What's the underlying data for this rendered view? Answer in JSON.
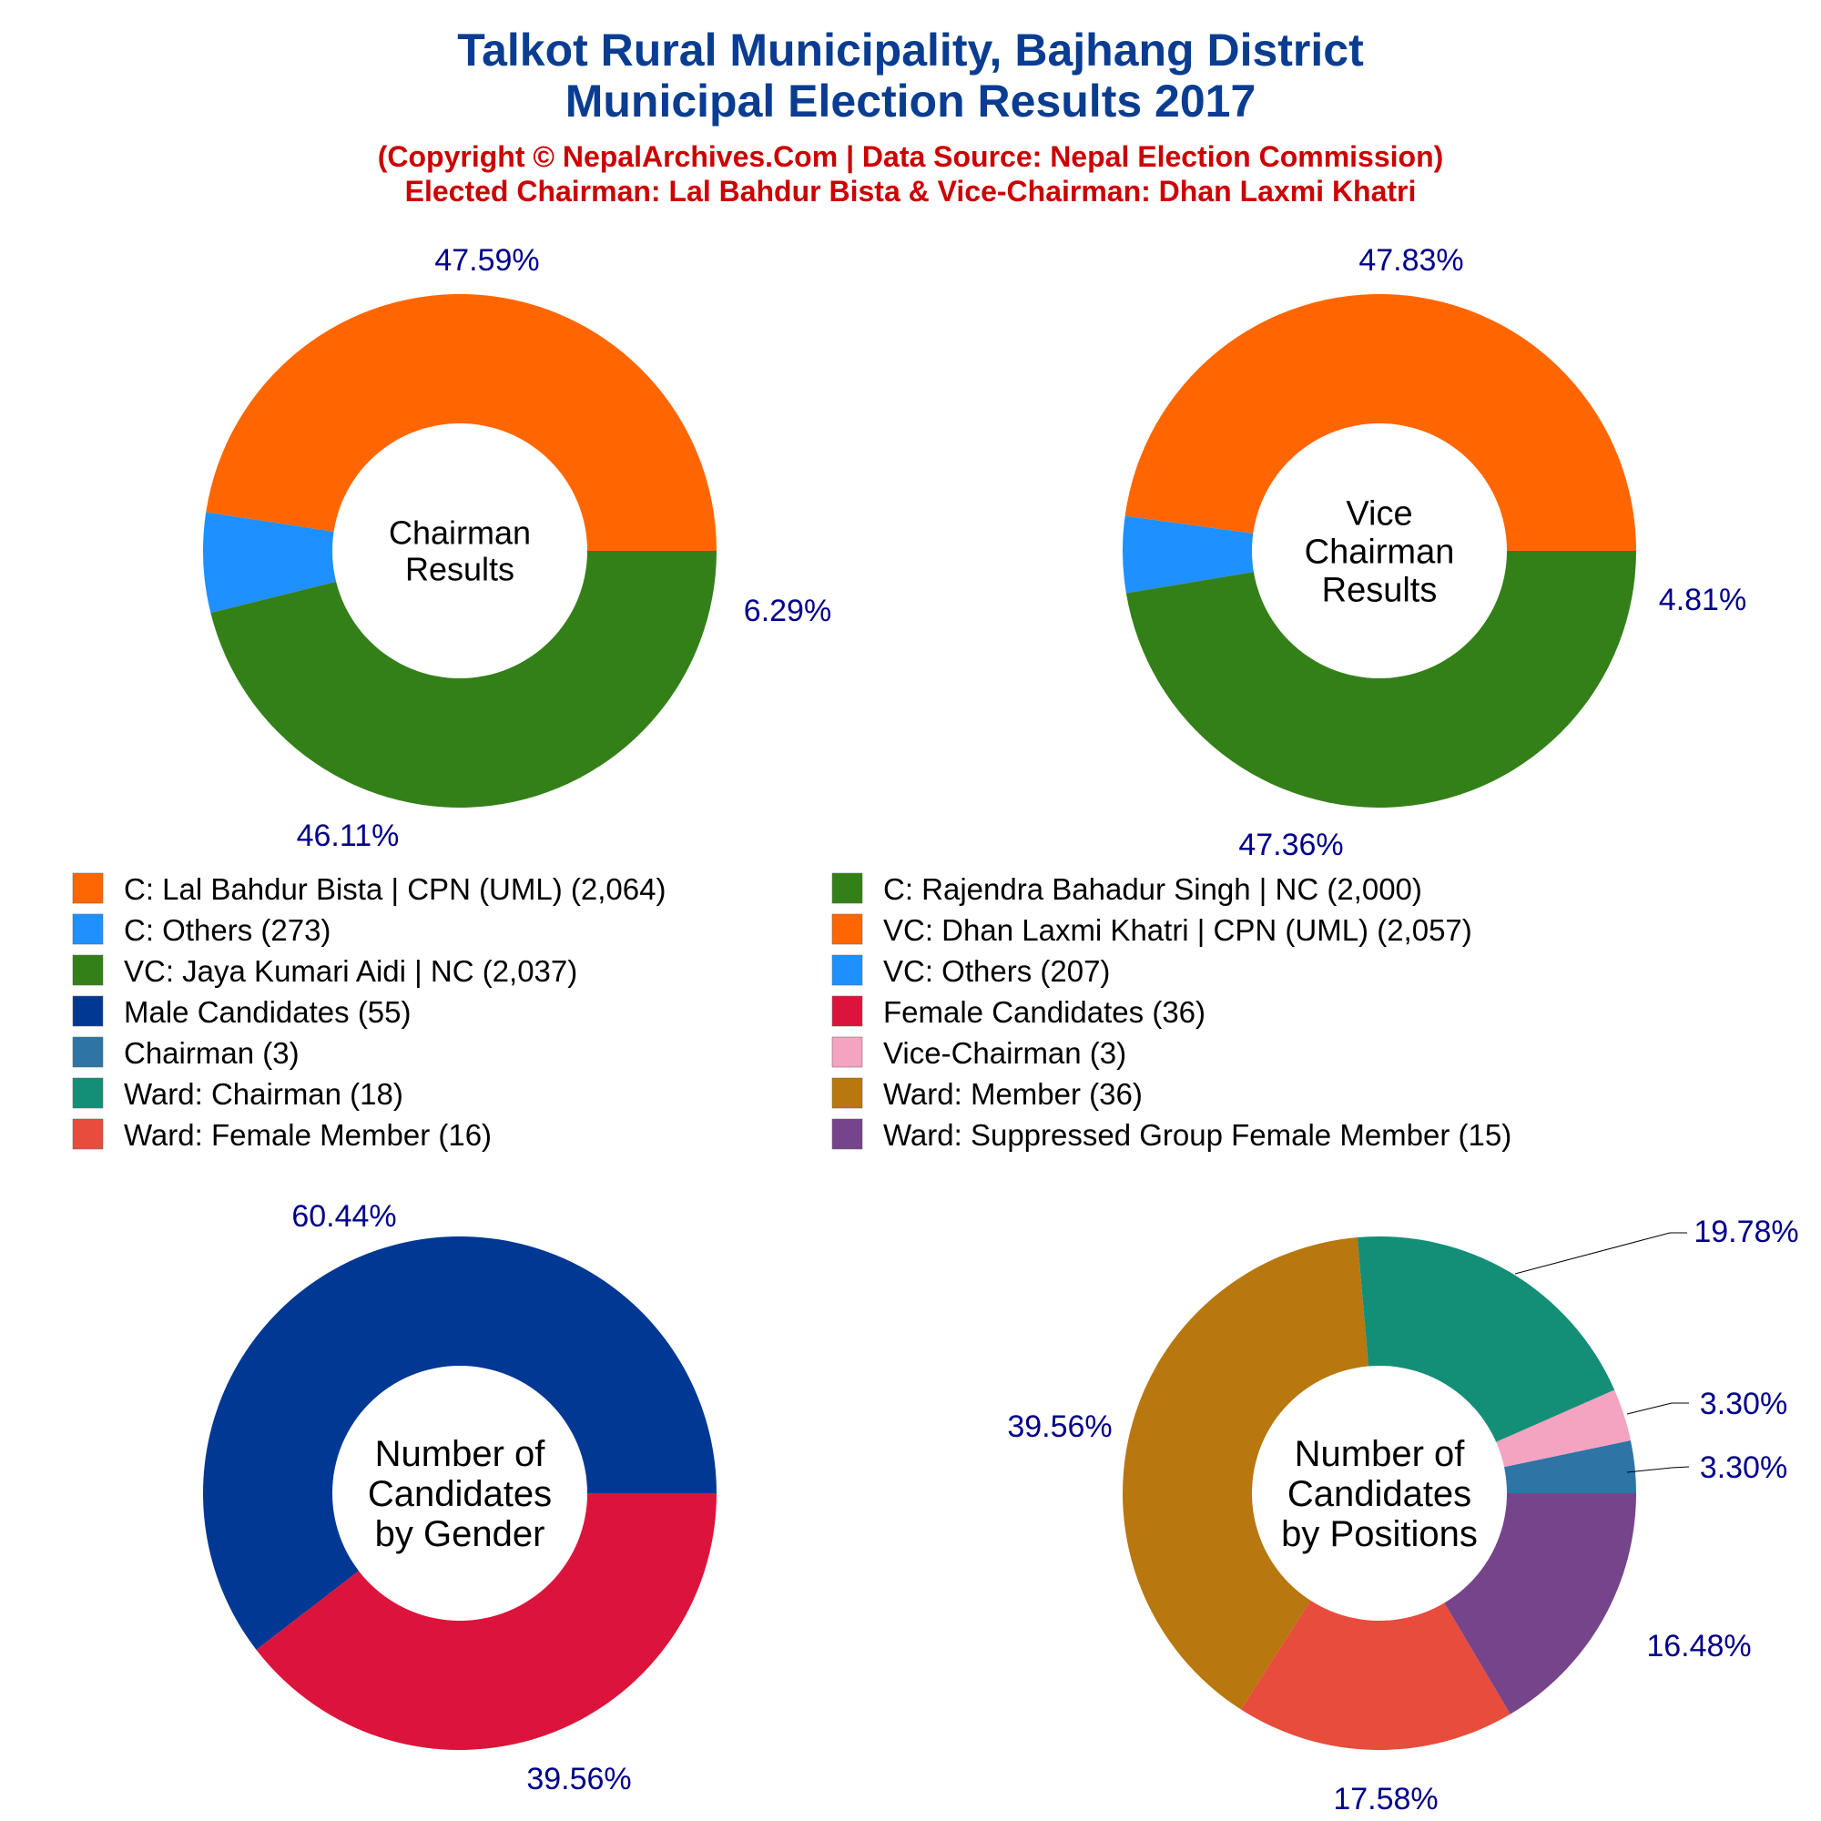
{
  "header": {
    "title_line1": "Talkot Rural Municipality, Bajhang District",
    "title_line2": "Municipal Election Results 2017",
    "subtitle_line1": "(Copyright © NepalArchives.Com | Data Source: Nepal Election Commission)",
    "subtitle_line2": "Elected Chairman: Lal Bahdur Bista & Vice-Chairman: Dhan Laxmi Khatri"
  },
  "colors": {
    "title": "#0a3d91",
    "subtitle": "#cc0000",
    "percent_label": "#00008b",
    "center_text": "#000000",
    "leader_line": "#000000"
  },
  "legend": [
    {
      "label": "C: Lal Bahdur Bista | CPN (UML) (2,064)",
      "color": "#ff6600"
    },
    {
      "label": "C: Rajendra Bahadur Singh | NC (2,000)",
      "color": "#338019"
    },
    {
      "label": "C: Others (273)",
      "color": "#1e90ff"
    },
    {
      "label": "VC: Dhan Laxmi Khatri | CPN (UML) (2,057)",
      "color": "#ff6600"
    },
    {
      "label": "VC: Jaya Kumari Aidi | NC (2,037)",
      "color": "#338019"
    },
    {
      "label": "VC: Others (207)",
      "color": "#1e90ff"
    },
    {
      "label": "Male Candidates (55)",
      "color": "#003893"
    },
    {
      "label": "Female Candidates (36)",
      "color": "#dc143c"
    },
    {
      "label": "Chairman (3)",
      "color": "#2e75a6"
    },
    {
      "label": "Vice-Chairman (3)",
      "color": "#f4a3c1"
    },
    {
      "label": "Ward: Chairman (18)",
      "color": "#148f77"
    },
    {
      "label": "Ward: Member (36)",
      "color": "#b8770f"
    },
    {
      "label": "Ward: Female Member (16)",
      "color": "#e74c3c"
    },
    {
      "label": "Ward: Suppressed Group Female Member (15)",
      "color": "#76448a"
    }
  ],
  "chart_data": [
    {
      "type": "pie",
      "donut": true,
      "center_label": [
        "Chairman",
        "Results"
      ],
      "labels": [
        "C: Lal Bahdur Bista | CPN (UML)",
        "C: Others",
        "C: Rajendra Bahadur Singh | NC"
      ],
      "values": [
        2064,
        273,
        2000
      ],
      "percent_labels": [
        "47.59%",
        "6.29%",
        "46.11%"
      ],
      "colors": [
        "#ff6600",
        "#1e90ff",
        "#338019"
      ]
    },
    {
      "type": "pie",
      "donut": true,
      "center_label": [
        "Vice",
        "Chairman",
        "Results"
      ],
      "labels": [
        "VC: Dhan Laxmi Khatri | CPN (UML)",
        "VC: Others",
        "VC: Jaya Kumari Aidi | NC"
      ],
      "values": [
        2057,
        207,
        2037
      ],
      "percent_labels": [
        "47.83%",
        "4.81%",
        "47.36%"
      ],
      "colors": [
        "#ff6600",
        "#1e90ff",
        "#338019"
      ]
    },
    {
      "type": "pie",
      "donut": true,
      "center_label": [
        "Number of",
        "Candidates",
        "by Gender"
      ],
      "labels": [
        "Male Candidates",
        "Female Candidates"
      ],
      "values": [
        55,
        36
      ],
      "percent_labels": [
        "60.44%",
        "39.56%"
      ],
      "colors": [
        "#003893",
        "#dc143c"
      ]
    },
    {
      "type": "pie",
      "donut": true,
      "center_label": [
        "Number of",
        "Candidates",
        "by Positions"
      ],
      "labels": [
        "Chairman",
        "Vice-Chairman",
        "Ward: Chairman",
        "Ward: Member",
        "Ward: Female Member",
        "Ward: Suppressed Group Female Member"
      ],
      "values": [
        3,
        3,
        18,
        36,
        16,
        15
      ],
      "percent_labels": [
        "3.30%",
        "3.30%",
        "19.78%",
        "39.56%",
        "17.58%",
        "16.48%"
      ],
      "colors": [
        "#2e75a6",
        "#f4a3c1",
        "#148f77",
        "#b8770f",
        "#e74c3c",
        "#76448a"
      ]
    }
  ]
}
